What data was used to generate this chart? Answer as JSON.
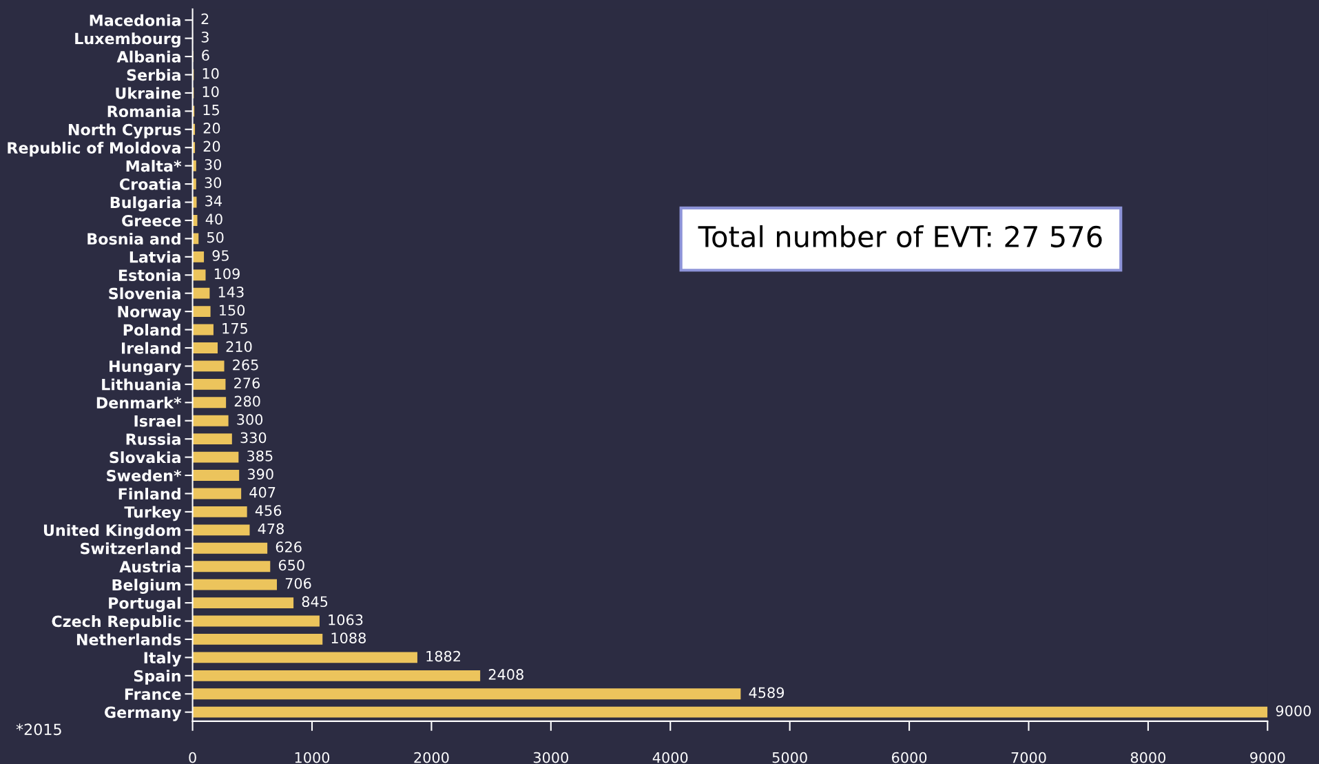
{
  "chart_data": {
    "type": "bar",
    "orientation": "horizontal",
    "categories": [
      "Macedonia",
      "Luxembourg",
      "Albania",
      "Serbia",
      "Ukraine",
      "Romania",
      "North Cyprus",
      "Republic of Moldova",
      "Malta*",
      "Croatia",
      "Bulgaria",
      "Greece",
      "Bosnia and",
      "Latvia",
      "Estonia",
      "Slovenia",
      "Norway",
      "Poland",
      "Ireland",
      "Hungary",
      "Lithuania",
      "Denmark*",
      "Israel",
      "Russia",
      "Slovakia",
      "Sweden*",
      "Finland",
      "Turkey",
      "United Kingdom",
      "Switzerland",
      "Austria",
      "Belgium",
      "Portugal",
      "Czech Republic",
      "Netherlands",
      "Italy",
      "Spain",
      "France",
      "Germany"
    ],
    "values": [
      2,
      3,
      6,
      10,
      10,
      15,
      20,
      20,
      30,
      30,
      34,
      40,
      50,
      95,
      109,
      143,
      150,
      175,
      210,
      265,
      276,
      280,
      300,
      330,
      385,
      390,
      407,
      456,
      478,
      626,
      650,
      706,
      845,
      1063,
      1088,
      1882,
      2408,
      4589,
      9000
    ],
    "color": "#ecc45c",
    "data_labels": true,
    "xlim": [
      0,
      9000
    ],
    "xticks": [
      0,
      1000,
      2000,
      3000,
      4000,
      5000,
      6000,
      7000,
      8000,
      9000
    ],
    "grid": false,
    "legend": false,
    "annotations": [
      "Total number of EVT: 27 576",
      "*2015"
    ]
  }
}
